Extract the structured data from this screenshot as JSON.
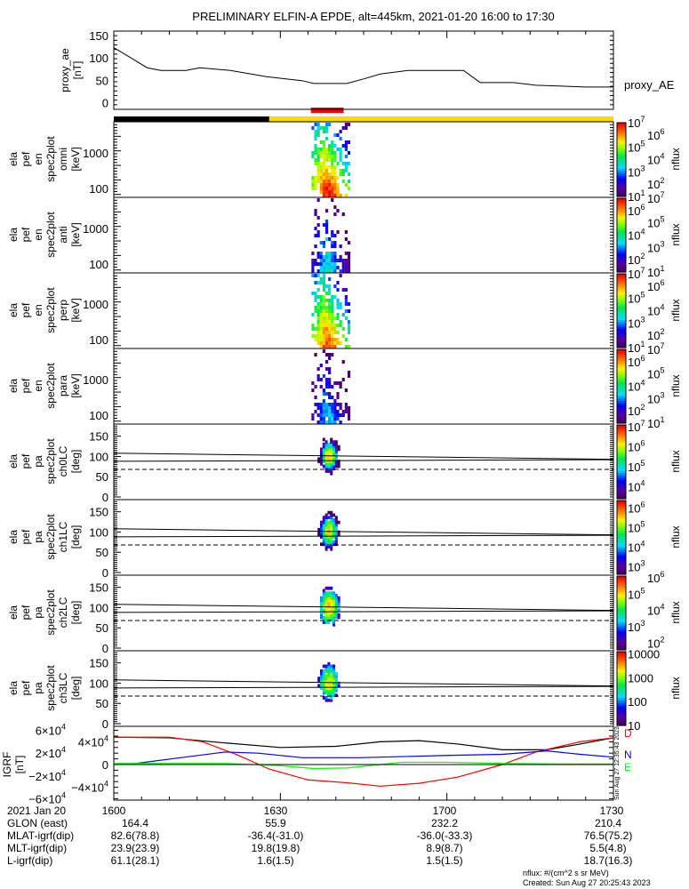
{
  "chart_data": {
    "type": "heatmap",
    "title": "PRELIMINARY ELFIN-A EPDE, alt=445km, 2021-01-20 16:00 to 17:30",
    "time_range_min": [
      0,
      90
    ],
    "xticks": [
      "1600",
      "1630",
      "1700",
      "1730"
    ],
    "proxy_ae": {
      "type": "line",
      "ylabel": [
        "proxy_ae",
        "[nT]"
      ],
      "legend": "proxy_AE",
      "ylim": [
        0,
        160
      ],
      "yticks": [
        "0",
        "50",
        "100",
        "150"
      ],
      "t": [
        0,
        3.5,
        6,
        8.5,
        13,
        15.5,
        21,
        27.5,
        34,
        36,
        42,
        45,
        48,
        53,
        58,
        63,
        66,
        72,
        76,
        85,
        90
      ],
      "values": [
        123,
        97,
        78,
        72,
        72,
        78,
        72,
        58,
        49,
        43,
        43,
        53,
        64,
        72,
        72,
        72,
        45,
        45,
        39,
        35,
        35
      ]
    },
    "bars": {
      "shadow_black_until_min": 28,
      "science_zone_min": [
        35.5,
        41.4
      ],
      "science_zone_color": "#ff0000",
      "sunlit_color": "#ffd700",
      "shadow_color": "#000000"
    },
    "panels": [
      {
        "kind": "energy",
        "label": [
          "ela",
          "pef",
          "en",
          "spec2plot",
          "omni",
          "[keV]"
        ],
        "yticks": [
          "1000",
          "100"
        ],
        "colorbar": {
          "label": "nflux",
          "clim_log": [
            1,
            7
          ],
          "ticks": [
            "10^7",
            "10^6",
            "10^5",
            "10^4",
            "10^3",
            "10^2",
            "10^1"
          ]
        }
      },
      {
        "kind": "energy",
        "label": [
          "ela",
          "pef",
          "en",
          "spec2plot",
          "anti",
          "[keV]"
        ],
        "yticks": [
          "1000",
          "100"
        ],
        "colorbar": {
          "label": "nflux",
          "clim_log": [
            1,
            7
          ],
          "ticks": [
            "10^7",
            "10^6",
            "10^5",
            "10^4",
            "10^3",
            "10^2",
            "10^1"
          ]
        }
      },
      {
        "kind": "energy",
        "label": [
          "ela",
          "pef",
          "en",
          "spec2plot",
          "perp",
          "[keV]"
        ],
        "yticks": [
          "1000",
          "100"
        ],
        "colorbar": {
          "label": "nflux",
          "clim_log": [
            1,
            7
          ],
          "ticks": [
            "10^7",
            "10^6",
            "10^5",
            "10^4",
            "10^3",
            "10^2",
            "10^1"
          ]
        }
      },
      {
        "kind": "energy",
        "label": [
          "ela",
          "pef",
          "en",
          "spec2plot",
          "para",
          "[keV]"
        ],
        "yticks": [
          "1000",
          "100"
        ],
        "colorbar": {
          "label": "nflux",
          "clim_log": [
            1,
            7
          ],
          "ticks": [
            "10^7",
            "10^6",
            "10^5",
            "10^4",
            "10^3",
            "10^2",
            "10^1"
          ]
        }
      },
      {
        "kind": "pa",
        "label": [
          "ela",
          "pef",
          "pa",
          "spec2plot",
          "ch0LC",
          "[deg]"
        ],
        "yticks": [
          "0",
          "50",
          "100",
          "150"
        ],
        "colorbar": {
          "label": "nflux",
          "clim_log": [
            3.4,
            7.1
          ],
          "ticks": [
            "10^7",
            "10^6",
            "10^5",
            "10^4"
          ]
        }
      },
      {
        "kind": "pa",
        "label": [
          "ela",
          "pef",
          "pa",
          "spec2plot",
          "ch1LC",
          "[deg]"
        ],
        "yticks": [
          "0",
          "50",
          "100",
          "150"
        ],
        "colorbar": {
          "label": "nflux",
          "clim_log": [
            2.6,
            6.4
          ],
          "ticks": [
            "10^6",
            "10^5",
            "10^4",
            "10^3"
          ]
        }
      },
      {
        "kind": "pa",
        "label": [
          "ela",
          "pef",
          "pa",
          "spec2plot",
          "ch2LC",
          "[deg]"
        ],
        "yticks": [
          "0",
          "50",
          "100",
          "150"
        ],
        "colorbar": {
          "label": "nflux",
          "clim_log": [
            1.6,
            6.1
          ],
          "ticks": [
            "10^6",
            "10^5",
            "10^4",
            "10^3",
            "10^2"
          ]
        }
      },
      {
        "kind": "pa",
        "label": [
          "ela",
          "pef",
          "pa",
          "spec2plot",
          "ch3LC",
          "[deg]"
        ],
        "yticks": [
          "0",
          "50",
          "100",
          "150"
        ],
        "colorbar": {
          "label": "nflux",
          "clim_log": [
            1,
            4.1
          ],
          "ticks": [
            "10000",
            "1000",
            "100",
            "10"
          ]
        }
      }
    ],
    "igrf": {
      "type": "line",
      "ylabel": [
        "IGRF",
        "[nT]"
      ],
      "ylim": [
        -65000,
        65000
      ],
      "yticks": [
        "6×10^4",
        "4×10^4",
        "2×10^4",
        "0",
        "−2×10^4",
        "−4×10^4",
        "−6×10^4"
      ],
      "series": [
        {
          "name": "total",
          "color": "#000000",
          "t": [
            0,
            10,
            20,
            30,
            40,
            48,
            55,
            62,
            70,
            78,
            84,
            90
          ],
          "values": [
            48000,
            47000,
            38000,
            30000,
            32000,
            40000,
            42000,
            36000,
            26000,
            26000,
            36000,
            47000
          ]
        },
        {
          "name": "D",
          "color": "#ff0000",
          "t": [
            0,
            10,
            16,
            22,
            28,
            35,
            42,
            48,
            55,
            62,
            70,
            76,
            84,
            90
          ],
          "values": [
            48000,
            48000,
            40000,
            18000,
            -8000,
            -27000,
            -32000,
            -38000,
            -33000,
            -22000,
            0,
            22000,
            40000,
            47000
          ]
        },
        {
          "name": "N",
          "color": "#0000ff",
          "t": [
            0,
            4,
            12,
            20,
            26,
            34,
            44,
            52,
            60,
            70,
            78,
            84,
            90
          ],
          "values": [
            0,
            2000,
            12000,
            22000,
            20000,
            12000,
            12000,
            14000,
            16000,
            18000,
            24000,
            18000,
            13000
          ]
        },
        {
          "name": "E",
          "color": "#00ff00",
          "t": [
            0,
            20,
            30,
            36,
            42,
            48,
            52,
            60,
            70,
            80,
            90
          ],
          "values": [
            2000,
            2000,
            -2000,
            -7000,
            -6000,
            0,
            4000,
            4000,
            2000,
            1000,
            1000
          ]
        }
      ],
      "legend": [
        "D",
        "N",
        "E"
      ]
    },
    "pa_lines": {
      "upper_deg": [
        108,
        93
      ],
      "lower_deg": [
        88,
        92
      ],
      "dashed_deg": 68
    }
  },
  "ephemeris": {
    "header": [
      "2021 Jan 20",
      "1600",
      "1630",
      "1700",
      "1730"
    ],
    "rows": [
      {
        "label": "GLON (east)",
        "values": [
          "164.4",
          "55.9",
          "232.2",
          "210.4"
        ]
      },
      {
        "label": "MLAT-igrf(dip)",
        "values": [
          "82.6(78.8)",
          "-36.4(-31.0)",
          "-36.0(-33.3)",
          "76.5(75.2)"
        ]
      },
      {
        "label": "MLT-igrf(dip)",
        "values": [
          "23.9(23.9)",
          "19.8(19.8)",
          "8.9(8.7)",
          "5.5(4.8)"
        ]
      },
      {
        "label": "L-igrf(dip)",
        "values": [
          "61.1(28.1)",
          "1.6(1.5)",
          "1.5(1.5)",
          "18.7(16.3)"
        ]
      }
    ]
  },
  "footer": {
    "units": "nflux: #/(cm^2 s sr MeV)",
    "created": "Created: Sun Aug 27 20:25:43 2023",
    "side_stamp": "Sun Aug 27 12:35:43 2023"
  }
}
